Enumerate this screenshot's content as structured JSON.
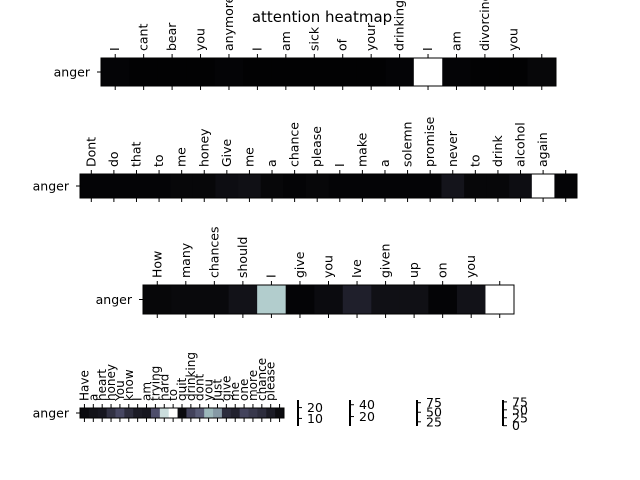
{
  "chart_data": {
    "type": "heatmap",
    "title": "attention heatmap",
    "colormap": "bone",
    "panels": [
      {
        "row_label": "anger",
        "tokens": [
          "I",
          "cant",
          "bear",
          "you",
          "anymore",
          "I",
          "am",
          "sick",
          "of",
          "your",
          "drinking",
          "I",
          "am",
          "divorcing",
          "you",
          ""
        ],
        "values": [
          0.02,
          0.01,
          0.01,
          0.01,
          0.02,
          0.01,
          0.01,
          0.01,
          0.01,
          0.01,
          0.02,
          1.0,
          0.02,
          0.01,
          0.01,
          0.03
        ]
      },
      {
        "row_label": "anger",
        "tokens": [
          "Dont",
          "do",
          "that",
          "to",
          "me",
          "honey",
          "Give",
          "me",
          "a",
          "chance",
          "please",
          "I",
          "make",
          "a",
          "solemn",
          "promise",
          "never",
          "to",
          "drink",
          "alcohol",
          "again",
          ""
        ],
        "values": [
          0.02,
          0.02,
          0.02,
          0.02,
          0.03,
          0.03,
          0.06,
          0.07,
          0.03,
          0.02,
          0.03,
          0.02,
          0.02,
          0.02,
          0.02,
          0.02,
          0.09,
          0.03,
          0.03,
          0.06,
          1.0,
          0.02
        ]
      },
      {
        "row_label": "anger",
        "tokens": [
          "How",
          "many",
          "chances",
          "should",
          "I",
          "give",
          "you",
          "Ive",
          "given",
          "up",
          "on",
          "you",
          ""
        ],
        "values": [
          0.03,
          0.04,
          0.04,
          0.08,
          0.78,
          0.02,
          0.05,
          0.14,
          0.07,
          0.07,
          0.02,
          0.08,
          1.0
        ]
      },
      {
        "row_label": "anger",
        "tokens": [
          "Have",
          "a",
          "heart",
          "honey",
          "You",
          "know",
          "I",
          "am",
          "trying",
          "hard",
          "to",
          "quit",
          "drinking",
          "dont",
          "you",
          "Just",
          "give",
          "me",
          "one",
          "more",
          "chance",
          "please",
          ""
        ],
        "values": [
          0.05,
          0.08,
          0.1,
          0.22,
          0.32,
          0.2,
          0.12,
          0.1,
          0.35,
          0.85,
          1.0,
          0.05,
          0.3,
          0.4,
          0.7,
          0.6,
          0.2,
          0.15,
          0.3,
          0.25,
          0.2,
          0.12,
          0.05
        ]
      }
    ],
    "colorbars": [
      {
        "ticks": [
          10,
          20
        ],
        "range": [
          3,
          27
        ]
      },
      {
        "ticks": [
          20,
          40
        ],
        "range": [
          4,
          48
        ]
      },
      {
        "ticks": [
          25,
          50,
          75
        ],
        "range": [
          14,
          82
        ]
      },
      {
        "ticks": [
          0,
          25,
          50,
          75
        ],
        "range": [
          -1,
          81
        ]
      }
    ]
  }
}
